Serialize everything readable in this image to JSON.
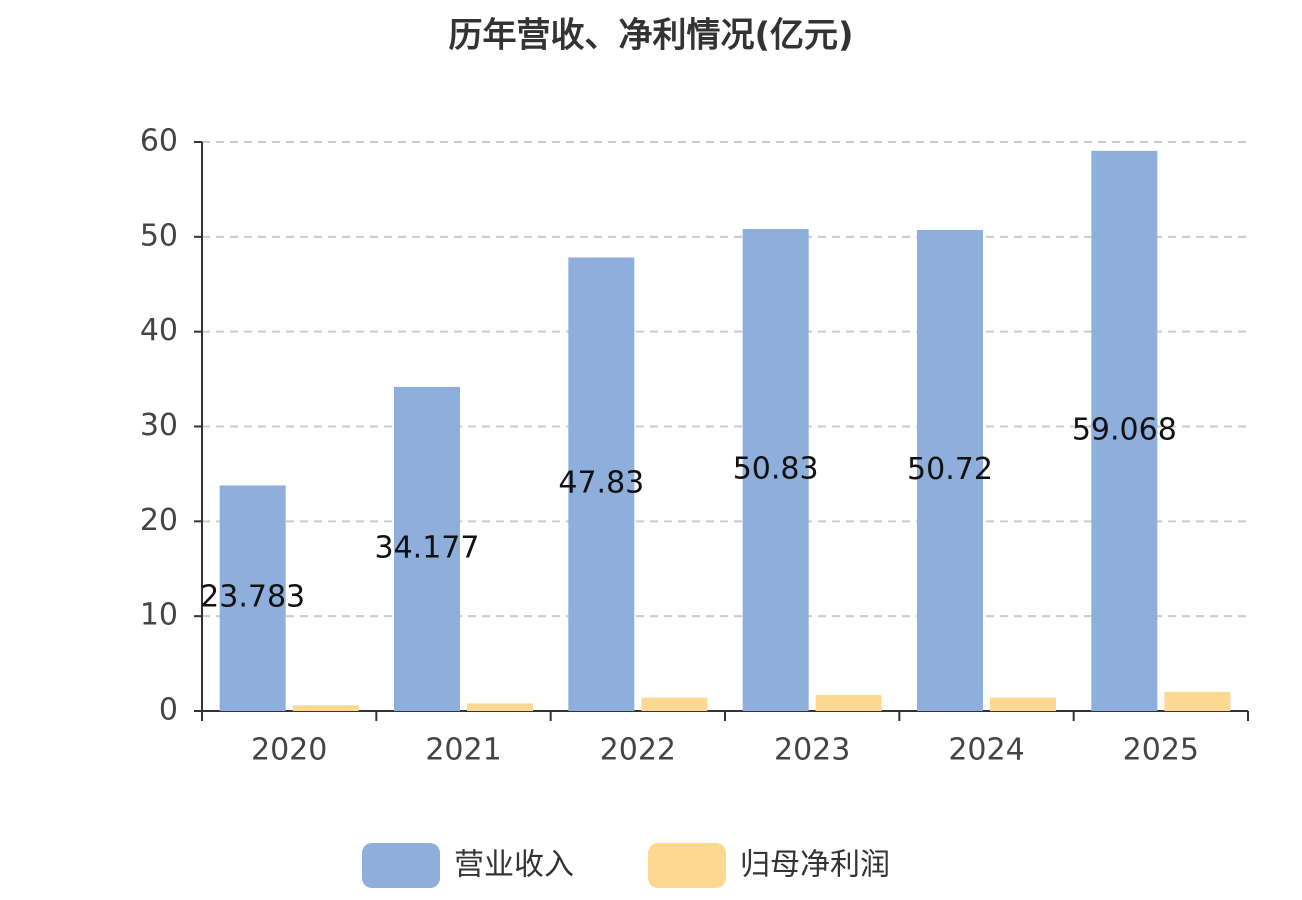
{
  "chart_data": {
    "type": "bar",
    "title": "历年营收、净利情况(亿元)",
    "categories": [
      "2020",
      "2021",
      "2022",
      "2023",
      "2024",
      "2025"
    ],
    "series": [
      {
        "name": "营业收入",
        "color": "#8eaedb",
        "values": [
          23.783,
          34.177,
          47.83,
          50.83,
          50.72,
          59.068
        ]
      },
      {
        "name": "归母净利润",
        "color": "#fdd891",
        "values": [
          0.6,
          0.8,
          1.4,
          1.7,
          1.4,
          2.0
        ]
      }
    ],
    "ylim": [
      0,
      60
    ],
    "yticks": [
      0,
      10,
      20,
      30,
      40,
      50,
      60
    ],
    "grid": true,
    "legend": "bottom"
  }
}
